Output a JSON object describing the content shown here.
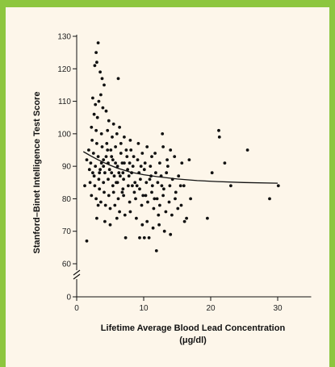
{
  "colors": {
    "frame": "#8dc63f",
    "panel": "#fdf6ea",
    "ink": "#111111"
  },
  "chart_data": {
    "type": "scatter",
    "title": "",
    "xlabel": "Lifetime Average Blood Lead Concentration",
    "xlabel_unit": "(μg/dl)",
    "ylabel": "Stanford–Binet Intelligence Test Score",
    "xlim": [
      0,
      35
    ],
    "ylim": [
      60,
      130
    ],
    "y_axis_break": true,
    "grid": false,
    "x_ticks": [
      0,
      10,
      20,
      30
    ],
    "y_ticks": [
      60,
      70,
      80,
      90,
      100,
      110,
      120,
      130
    ],
    "y_break_tick": 0,
    "fit_curve": {
      "x": [
        1,
        2,
        3,
        4,
        5,
        6,
        8,
        10,
        12,
        15,
        18,
        21,
        25,
        30
      ],
      "y": [
        94.5,
        93.3,
        92.2,
        91.2,
        90.3,
        89.5,
        88.2,
        87.4,
        86.8,
        86.1,
        85.6,
        85.3,
        85.0,
        84.8
      ]
    },
    "points": [
      [
        3.2,
        128
      ],
      [
        2.9,
        125
      ],
      [
        3.0,
        122
      ],
      [
        2.7,
        121
      ],
      [
        3.5,
        119
      ],
      [
        3.8,
        117
      ],
      [
        4.1,
        115
      ],
      [
        3.6,
        112
      ],
      [
        6.2,
        117
      ],
      [
        2.4,
        111
      ],
      [
        2.8,
        109
      ],
      [
        3.3,
        110
      ],
      [
        3.9,
        108
      ],
      [
        4.4,
        107
      ],
      [
        2.6,
        106
      ],
      [
        3.1,
        105
      ],
      [
        4.8,
        104
      ],
      [
        5.5,
        103
      ],
      [
        6.4,
        102
      ],
      [
        2.2,
        102
      ],
      [
        2.9,
        101
      ],
      [
        3.7,
        100
      ],
      [
        4.6,
        101
      ],
      [
        5.3,
        99
      ],
      [
        6.0,
        100
      ],
      [
        7.1,
        99
      ],
      [
        8.0,
        98
      ],
      [
        9.2,
        97
      ],
      [
        10.5,
        96
      ],
      [
        12.8,
        100
      ],
      [
        2.3,
        98
      ],
      [
        3.0,
        97
      ],
      [
        3.8,
        96
      ],
      [
        4.5,
        97
      ],
      [
        5.1,
        95
      ],
      [
        5.8,
        96
      ],
      [
        6.6,
        94
      ],
      [
        7.4,
        95
      ],
      [
        8.5,
        93
      ],
      [
        9.8,
        94
      ],
      [
        11.2,
        93
      ],
      [
        12.4,
        91
      ],
      [
        13.5,
        92
      ],
      [
        14.6,
        93
      ],
      [
        15.7,
        91
      ],
      [
        1.8,
        95
      ],
      [
        2.5,
        94
      ],
      [
        3.2,
        93
      ],
      [
        4.0,
        92
      ],
      [
        4.7,
        91
      ],
      [
        5.4,
        92
      ],
      [
        6.1,
        90
      ],
      [
        6.8,
        91
      ],
      [
        7.6,
        89
      ],
      [
        8.4,
        90
      ],
      [
        9.3,
        88
      ],
      [
        10.1,
        89
      ],
      [
        11.0,
        90
      ],
      [
        11.8,
        88
      ],
      [
        12.6,
        87
      ],
      [
        13.4,
        88
      ],
      [
        14.3,
        86
      ],
      [
        15.2,
        87
      ],
      [
        16.8,
        92
      ],
      [
        1.5,
        92
      ],
      [
        2.1,
        91
      ],
      [
        2.8,
        90
      ],
      [
        3.5,
        89
      ],
      [
        4.2,
        88
      ],
      [
        4.9,
        89
      ],
      [
        5.6,
        87
      ],
      [
        6.3,
        88
      ],
      [
        7.0,
        86
      ],
      [
        7.8,
        87
      ],
      [
        8.7,
        85
      ],
      [
        9.5,
        86
      ],
      [
        10.4,
        85
      ],
      [
        11.3,
        84
      ],
      [
        12.1,
        85
      ],
      [
        13.0,
        83
      ],
      [
        13.9,
        84
      ],
      [
        14.8,
        82
      ],
      [
        16.0,
        84
      ],
      [
        1.9,
        89
      ],
      [
        2.6,
        87
      ],
      [
        3.3,
        86
      ],
      [
        4.0,
        85
      ],
      [
        4.7,
        86
      ],
      [
        5.4,
        84
      ],
      [
        6.1,
        85
      ],
      [
        6.9,
        83
      ],
      [
        7.7,
        84
      ],
      [
        8.6,
        82
      ],
      [
        9.4,
        83
      ],
      [
        10.3,
        81
      ],
      [
        11.2,
        82
      ],
      [
        12.0,
        80
      ],
      [
        12.9,
        81
      ],
      [
        13.8,
        79
      ],
      [
        14.7,
        80
      ],
      [
        15.6,
        78
      ],
      [
        17.0,
        80
      ],
      [
        2.0,
        85
      ],
      [
        2.7,
        84
      ],
      [
        3.4,
        83
      ],
      [
        4.1,
        82
      ],
      [
        4.8,
        81
      ],
      [
        5.5,
        82
      ],
      [
        6.2,
        80
      ],
      [
        7.0,
        81
      ],
      [
        7.9,
        79
      ],
      [
        8.8,
        80
      ],
      [
        9.7,
        78
      ],
      [
        10.6,
        79
      ],
      [
        11.5,
        77
      ],
      [
        12.4,
        78
      ],
      [
        13.3,
        76
      ],
      [
        14.2,
        75
      ],
      [
        15.1,
        77
      ],
      [
        16.4,
        74
      ],
      [
        19.5,
        74
      ],
      [
        2.2,
        81
      ],
      [
        2.9,
        80
      ],
      [
        3.6,
        79
      ],
      [
        4.3,
        78
      ],
      [
        5.0,
        77
      ],
      [
        5.7,
        78
      ],
      [
        6.4,
        76
      ],
      [
        7.2,
        75
      ],
      [
        8.0,
        76
      ],
      [
        8.9,
        74
      ],
      [
        9.8,
        72
      ],
      [
        10.5,
        73
      ],
      [
        11.4,
        71
      ],
      [
        12.3,
        72
      ],
      [
        13.1,
        70
      ],
      [
        14.0,
        69
      ],
      [
        3.0,
        74
      ],
      [
        4.2,
        73
      ],
      [
        5.0,
        72
      ],
      [
        6.0,
        74
      ],
      [
        7.3,
        68
      ],
      [
        9.4,
        68
      ],
      [
        10.1,
        68
      ],
      [
        10.8,
        68
      ],
      [
        11.9,
        64
      ],
      [
        1.5,
        67
      ],
      [
        1.2,
        84
      ],
      [
        3.2,
        78
      ],
      [
        4.0,
        90
      ],
      [
        5.2,
        93
      ],
      [
        6.6,
        97
      ],
      [
        7.9,
        91
      ],
      [
        9.1,
        92
      ],
      [
        10.2,
        91
      ],
      [
        11.7,
        94
      ],
      [
        12.9,
        96
      ],
      [
        14.0,
        95
      ],
      [
        20.2,
        88
      ],
      [
        21.2,
        101
      ],
      [
        21.3,
        99
      ],
      [
        22.1,
        91
      ],
      [
        23.0,
        84
      ],
      [
        25.5,
        95
      ],
      [
        28.8,
        80
      ],
      [
        30.1,
        84
      ],
      [
        3.4,
        88
      ],
      [
        4.4,
        93
      ],
      [
        5.9,
        85
      ],
      [
        6.8,
        82
      ],
      [
        7.5,
        93
      ],
      [
        8.2,
        88
      ],
      [
        9.0,
        84
      ],
      [
        10.9,
        86
      ],
      [
        11.6,
        80
      ],
      [
        12.7,
        84
      ],
      [
        13.6,
        90
      ],
      [
        15.5,
        84
      ],
      [
        16.1,
        73
      ],
      [
        4.6,
        95
      ],
      [
        5.2,
        88
      ],
      [
        6.5,
        87
      ],
      [
        7.1,
        91
      ],
      [
        8.3,
        84
      ],
      [
        9.6,
        90
      ],
      [
        2.4,
        88
      ],
      [
        3.7,
        91
      ],
      [
        5.8,
        91
      ],
      [
        6.9,
        88
      ],
      [
        8.1,
        95
      ],
      [
        9.9,
        81
      ],
      [
        11.1,
        87
      ],
      [
        12.2,
        75
      ]
    ]
  }
}
